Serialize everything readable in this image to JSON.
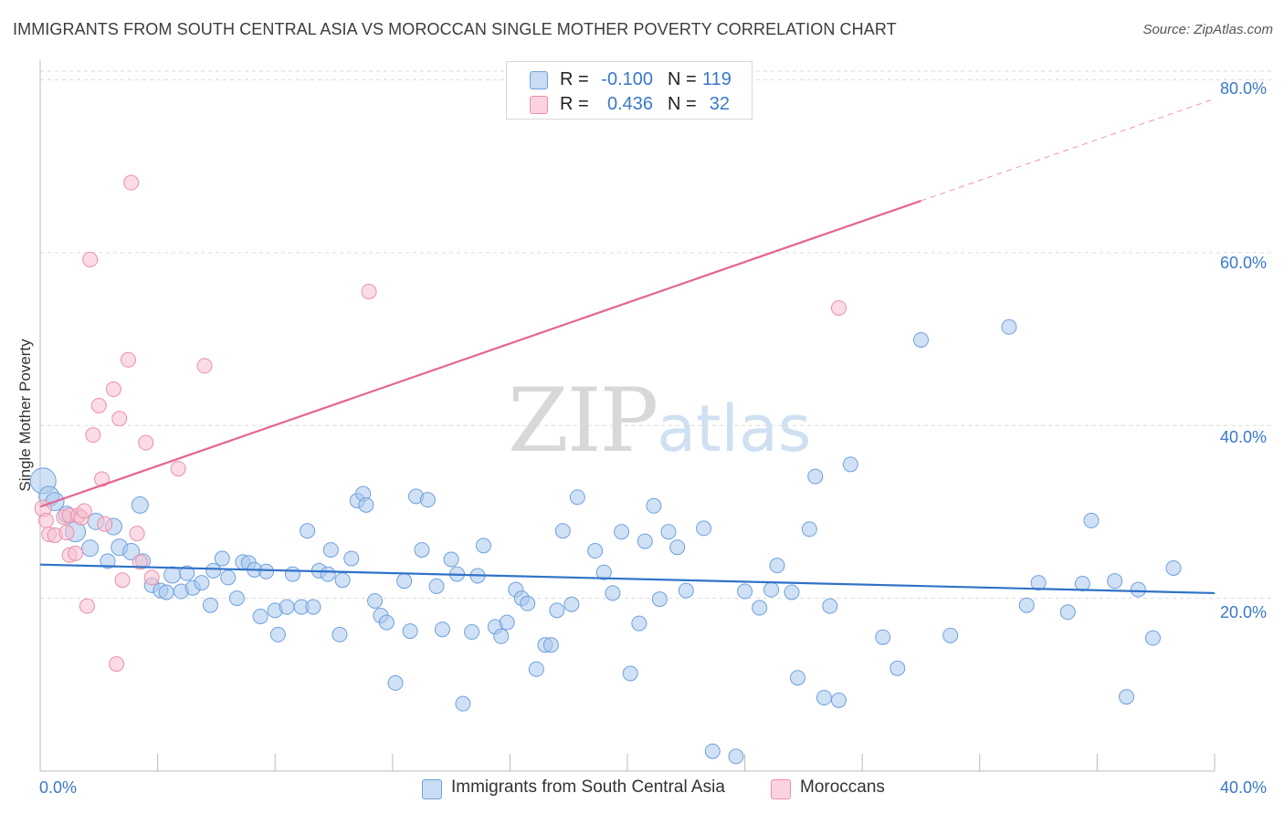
{
  "title": "IMMIGRANTS FROM SOUTH CENTRAL ASIA VS MOROCCAN SINGLE MOTHER POVERTY CORRELATION CHART",
  "source": "Source: ZipAtlas.com",
  "watermark": {
    "zip": "ZIP",
    "atlas": "atlas"
  },
  "legend_top": [
    {
      "r_label": "R =",
      "r_value": "-0.100",
      "n_label": "N =",
      "n_value": "119",
      "color": "#9fc3ec"
    },
    {
      "r_label": "R =",
      "r_value": "0.436",
      "n_label": "N =",
      "n_value": "32",
      "color": "#f5b6c9"
    }
  ],
  "legend_bottom": [
    {
      "label": "Immigrants from South Central Asia",
      "color": "#9fc3ec"
    },
    {
      "label": "Moroccans",
      "color": "#f5b6c9"
    }
  ],
  "y_axis_label": "Single Mother Poverty",
  "x_tick_labels": {
    "left": "0.0%",
    "right": "40.0%"
  },
  "y_tick_labels": [
    "80.0%",
    "60.0%",
    "40.0%",
    "20.0%"
  ],
  "colors": {
    "blue_fill": "#a9c8ee",
    "blue_stroke": "#6fa0dc",
    "blue_line": "#2f72c8",
    "pink_fill": "#f7c0d0",
    "pink_stroke": "#ec8eaa",
    "pink_line": "#e5648e",
    "axis_text": "#3a78c8",
    "grid": "#dcdcdc"
  },
  "chart_data": {
    "type": "scatter",
    "title": "IMMIGRANTS FROM SOUTH CENTRAL ASIA VS MOROCCAN SINGLE MOTHER POVERTY CORRELATION CHART",
    "xlabel": "",
    "ylabel": "Single Mother Poverty",
    "xlim": [
      0,
      40
    ],
    "ylim": [
      0,
      81
    ],
    "y_gridlines": [
      20,
      40,
      60,
      80
    ],
    "series": [
      {
        "name": "Immigrants from South Central Asia",
        "r": -0.1,
        "n": 119,
        "trend": {
          "x": [
            0,
            40
          ],
          "y": [
            23.9,
            20.6
          ],
          "style": "solid"
        },
        "points": [
          [
            0.1,
            33.6,
            14
          ],
          [
            0.3,
            31.8,
            11
          ],
          [
            0.5,
            31.2,
            10
          ],
          [
            0.9,
            29.7,
            9
          ],
          [
            1.2,
            27.7,
            11
          ],
          [
            1.9,
            28.9,
            9
          ],
          [
            2.5,
            28.3,
            9
          ],
          [
            1.7,
            25.8,
            9
          ],
          [
            2.3,
            24.3,
            8
          ],
          [
            2.7,
            25.9,
            9
          ],
          [
            3.1,
            25.4,
            9
          ],
          [
            3.5,
            24.3,
            8
          ],
          [
            3.4,
            30.8,
            9
          ],
          [
            3.8,
            21.5,
            8
          ],
          [
            4.1,
            20.9,
            8
          ],
          [
            4.3,
            20.7,
            8
          ],
          [
            4.5,
            22.7,
            9
          ],
          [
            4.8,
            20.8,
            8
          ],
          [
            5.0,
            22.9,
            8
          ],
          [
            5.2,
            21.2,
            8
          ],
          [
            5.5,
            21.8,
            8
          ],
          [
            5.8,
            19.2,
            8
          ],
          [
            5.9,
            23.2,
            8
          ],
          [
            6.2,
            24.6,
            8
          ],
          [
            6.4,
            22.4,
            8
          ],
          [
            6.7,
            20.0,
            8
          ],
          [
            6.9,
            24.2,
            8
          ],
          [
            7.1,
            24.1,
            8
          ],
          [
            7.3,
            23.3,
            8
          ],
          [
            7.5,
            17.9,
            8
          ],
          [
            7.7,
            23.1,
            8
          ],
          [
            8.0,
            18.6,
            8
          ],
          [
            8.1,
            15.8,
            8
          ],
          [
            8.4,
            19.0,
            8
          ],
          [
            8.6,
            22.8,
            8
          ],
          [
            8.9,
            19.0,
            8
          ],
          [
            9.1,
            27.8,
            8
          ],
          [
            9.3,
            19.0,
            8
          ],
          [
            9.5,
            23.2,
            8
          ],
          [
            9.8,
            22.8,
            8
          ],
          [
            9.9,
            25.6,
            8
          ],
          [
            10.2,
            15.8,
            8
          ],
          [
            10.3,
            22.1,
            8
          ],
          [
            10.6,
            24.6,
            8
          ],
          [
            10.8,
            31.3,
            8
          ],
          [
            11.0,
            32.1,
            8
          ],
          [
            11.1,
            30.8,
            8
          ],
          [
            11.4,
            19.7,
            8
          ],
          [
            11.6,
            18.0,
            8
          ],
          [
            11.8,
            17.2,
            8
          ],
          [
            12.1,
            10.2,
            8
          ],
          [
            12.4,
            22.0,
            8
          ],
          [
            12.6,
            16.2,
            8
          ],
          [
            12.8,
            31.8,
            8
          ],
          [
            13.0,
            25.6,
            8
          ],
          [
            13.2,
            31.4,
            8
          ],
          [
            13.5,
            21.4,
            8
          ],
          [
            13.7,
            16.4,
            8
          ],
          [
            14.0,
            24.5,
            8
          ],
          [
            14.2,
            22.8,
            8
          ],
          [
            14.4,
            7.8,
            8
          ],
          [
            14.7,
            16.1,
            8
          ],
          [
            14.9,
            22.6,
            8
          ],
          [
            15.1,
            26.1,
            8
          ],
          [
            15.5,
            16.7,
            8
          ],
          [
            15.7,
            15.6,
            8
          ],
          [
            15.9,
            17.2,
            8
          ],
          [
            16.2,
            21.0,
            8
          ],
          [
            16.4,
            20.0,
            8
          ],
          [
            16.6,
            19.4,
            8
          ],
          [
            16.9,
            11.8,
            8
          ],
          [
            17.2,
            14.6,
            8
          ],
          [
            17.4,
            14.6,
            8
          ],
          [
            17.6,
            18.6,
            8
          ],
          [
            17.8,
            27.8,
            8
          ],
          [
            18.1,
            19.3,
            8
          ],
          [
            18.3,
            31.7,
            8
          ],
          [
            18.9,
            25.5,
            8
          ],
          [
            19.2,
            23.0,
            8
          ],
          [
            19.5,
            20.6,
            8
          ],
          [
            19.8,
            27.7,
            8
          ],
          [
            20.1,
            11.3,
            8
          ],
          [
            20.4,
            17.1,
            8
          ],
          [
            20.6,
            26.6,
            8
          ],
          [
            20.9,
            30.7,
            8
          ],
          [
            21.1,
            19.9,
            8
          ],
          [
            21.4,
            27.7,
            8
          ],
          [
            21.7,
            25.9,
            8
          ],
          [
            22.0,
            20.9,
            8
          ],
          [
            22.6,
            28.1,
            8
          ],
          [
            22.9,
            2.3,
            8
          ],
          [
            23.7,
            1.7,
            8
          ],
          [
            24.0,
            20.8,
            8
          ],
          [
            24.5,
            18.9,
            8
          ],
          [
            24.9,
            21.0,
            8
          ],
          [
            25.1,
            23.8,
            8
          ],
          [
            25.6,
            20.7,
            8
          ],
          [
            25.8,
            10.8,
            8
          ],
          [
            26.2,
            28.0,
            8
          ],
          [
            26.4,
            34.1,
            8
          ],
          [
            26.7,
            8.5,
            8
          ],
          [
            26.9,
            19.1,
            8
          ],
          [
            27.2,
            8.2,
            8
          ],
          [
            27.6,
            35.5,
            8
          ],
          [
            28.7,
            15.5,
            8
          ],
          [
            29.2,
            11.9,
            8
          ],
          [
            30.0,
            49.9,
            8
          ],
          [
            31.0,
            15.7,
            8
          ],
          [
            33.0,
            51.4,
            8
          ],
          [
            33.6,
            19.2,
            8
          ],
          [
            34.0,
            21.8,
            8
          ],
          [
            35.0,
            18.4,
            8
          ],
          [
            35.5,
            21.7,
            8
          ],
          [
            35.8,
            29.0,
            8
          ],
          [
            36.6,
            22.0,
            8
          ],
          [
            37.0,
            8.6,
            8
          ],
          [
            37.4,
            21.0,
            8
          ],
          [
            37.9,
            15.4,
            8
          ],
          [
            38.6,
            23.5,
            8
          ]
        ]
      },
      {
        "name": "Moroccans",
        "r": 0.436,
        "n": 32,
        "trend": {
          "x_solid": [
            0,
            30.0
          ],
          "y_solid": [
            30.6,
            66.0
          ],
          "x_dashed": [
            30.0,
            40
          ],
          "y_dashed": [
            66.0,
            77.8
          ],
          "style": "solid+dashed"
        },
        "points": [
          [
            0.1,
            30.4,
            9
          ],
          [
            0.2,
            29.0,
            8
          ],
          [
            0.3,
            27.4,
            8
          ],
          [
            0.5,
            27.3,
            8
          ],
          [
            0.8,
            29.4,
            8
          ],
          [
            0.9,
            27.6,
            8
          ],
          [
            1.0,
            29.6,
            8
          ],
          [
            1.0,
            25.0,
            8
          ],
          [
            1.2,
            25.2,
            8
          ],
          [
            1.3,
            29.6,
            8
          ],
          [
            1.4,
            29.3,
            8
          ],
          [
            1.5,
            30.1,
            8
          ],
          [
            1.6,
            19.1,
            8
          ],
          [
            1.7,
            59.2,
            8
          ],
          [
            1.8,
            38.9,
            8
          ],
          [
            2.0,
            42.3,
            8
          ],
          [
            2.1,
            33.8,
            8
          ],
          [
            2.2,
            28.6,
            8
          ],
          [
            2.5,
            44.2,
            8
          ],
          [
            2.6,
            12.4,
            8
          ],
          [
            2.7,
            40.8,
            8
          ],
          [
            2.8,
            22.1,
            8
          ],
          [
            3.0,
            47.6,
            8
          ],
          [
            3.1,
            68.1,
            8
          ],
          [
            3.3,
            27.5,
            8
          ],
          [
            3.4,
            24.2,
            8
          ],
          [
            3.6,
            38.0,
            8
          ],
          [
            3.8,
            22.4,
            8
          ],
          [
            4.7,
            35.0,
            8
          ],
          [
            5.6,
            46.9,
            8
          ],
          [
            11.2,
            55.5,
            8
          ],
          [
            27.2,
            53.6,
            8
          ]
        ]
      }
    ]
  }
}
